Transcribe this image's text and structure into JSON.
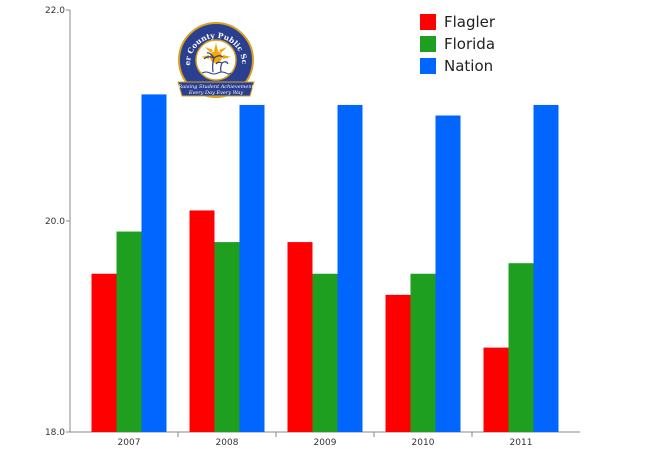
{
  "chart_data": {
    "type": "bar",
    "categories": [
      "2007",
      "2008",
      "2009",
      "2010",
      "2011"
    ],
    "series": [
      {
        "name": "Flagler",
        "values": [
          19.5,
          20.1,
          19.8,
          19.3,
          18.8
        ],
        "color": "#ff0000"
      },
      {
        "name": "Florida",
        "values": [
          19.9,
          19.8,
          19.5,
          19.5,
          19.6
        ],
        "color": "#1f9f1f"
      },
      {
        "name": "Nation",
        "values": [
          21.2,
          21.1,
          21.1,
          21.0,
          21.1
        ],
        "color": "#0066ff"
      }
    ],
    "ylim": [
      18.0,
      22.0
    ],
    "yticks": [
      "18.0",
      "20.0",
      "22.0"
    ],
    "ytick_values": [
      18.0,
      20.0,
      22.0
    ],
    "grid": false,
    "legend_position": "top-right"
  },
  "logo": {
    "arc_text": "Flagler County Public Schools",
    "ribbon_line1": "Raising Student Achievement",
    "ribbon_line2": "Every Day Every Way"
  }
}
